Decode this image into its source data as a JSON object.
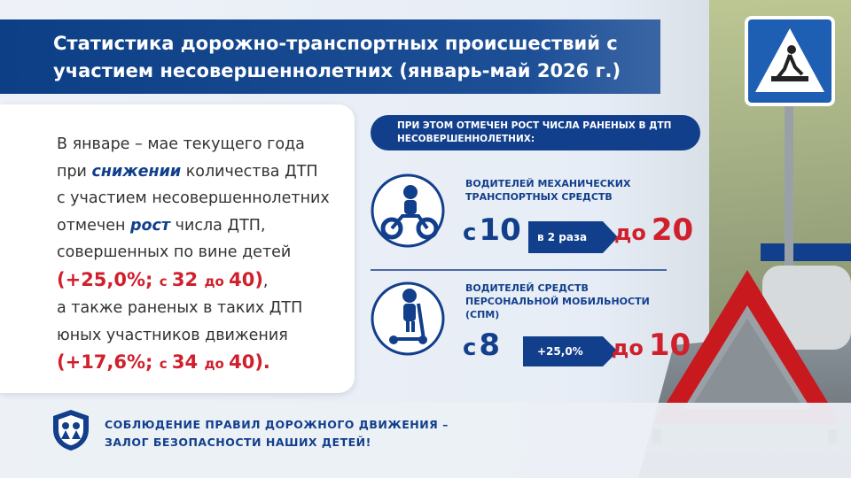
{
  "title": {
    "lines": [
      "Статистика  дорожно-транспортных происшествий с",
      "участием несовершеннолетних (январь-май 2026 г.)"
    ]
  },
  "summary": {
    "lines": [
      [
        {
          "text": "В январе – мае текущего года",
          "style": "plain"
        }
      ],
      [
        {
          "text": "при ",
          "style": "plain"
        },
        {
          "text": "снижении",
          "style": "emph"
        },
        {
          "text": " количества ДТП",
          "style": "plain"
        }
      ],
      [
        {
          "text": "с участием несовершеннолетних",
          "style": "plain"
        }
      ],
      [
        {
          "text": "отмечен ",
          "style": "plain"
        },
        {
          "text": "рост",
          "style": "emph"
        },
        {
          "text": " числа ДТП,",
          "style": "plain"
        }
      ],
      [
        {
          "text": "совершенных по вине детей",
          "style": "plain"
        }
      ],
      [
        {
          "text": "(+25,0%; ",
          "style": "red"
        },
        {
          "text": "с ",
          "style": "red-small"
        },
        {
          "text": "32 ",
          "style": "red"
        },
        {
          "text": "до ",
          "style": "red-small"
        },
        {
          "text": "40)",
          "style": "red"
        },
        {
          "text": ",",
          "style": "plain"
        }
      ],
      [
        {
          "text": "а также раненых в таких ДТП",
          "style": "plain"
        }
      ],
      [
        {
          "text": "юных участников движения",
          "style": "plain"
        }
      ],
      [
        {
          "text": "(+17,6%; ",
          "style": "red"
        },
        {
          "text": "с ",
          "style": "red-small"
        },
        {
          "text": "34 ",
          "style": "red"
        },
        {
          "text": "до ",
          "style": "red-small"
        },
        {
          "text": "40).",
          "style": "red"
        }
      ]
    ]
  },
  "panel": {
    "header": [
      "ПРИ ЭТОМ ОТМЕЧЕН РОСТ ЧИСЛА РАНЕНЫХ В ДТП",
      "НЕСОВЕРШЕННОЛЕТНИХ:"
    ],
    "items": [
      {
        "label": [
          "ВОДИТЕЛЕЙ МЕХАНИЧЕСКИХ",
          "ТРАНСПОРТНЫХ СРЕДСТВ"
        ],
        "from_word": "с",
        "from": 10,
        "change": "в 2 раза",
        "to_word": "до",
        "to": 20
      },
      {
        "label": [
          "ВОДИТЕЛЕЙ СРЕДСТВ",
          "ПЕРСОНАЛЬНОЙ МОБИЛЬНОСТИ",
          "(СПМ)"
        ],
        "from_word": "с",
        "from": 8,
        "change": "+25,0%",
        "to_word": "до",
        "to": 10
      }
    ]
  },
  "footer": {
    "lines": [
      "СОБЛЮДЕНИЕ ПРАВИЛ ДОРОЖНОГО ДВИЖЕНИЯ –",
      "ЗАЛОГ БЕЗОПАСНОСТИ НАШИХ ДЕТЕЙ!"
    ]
  }
}
